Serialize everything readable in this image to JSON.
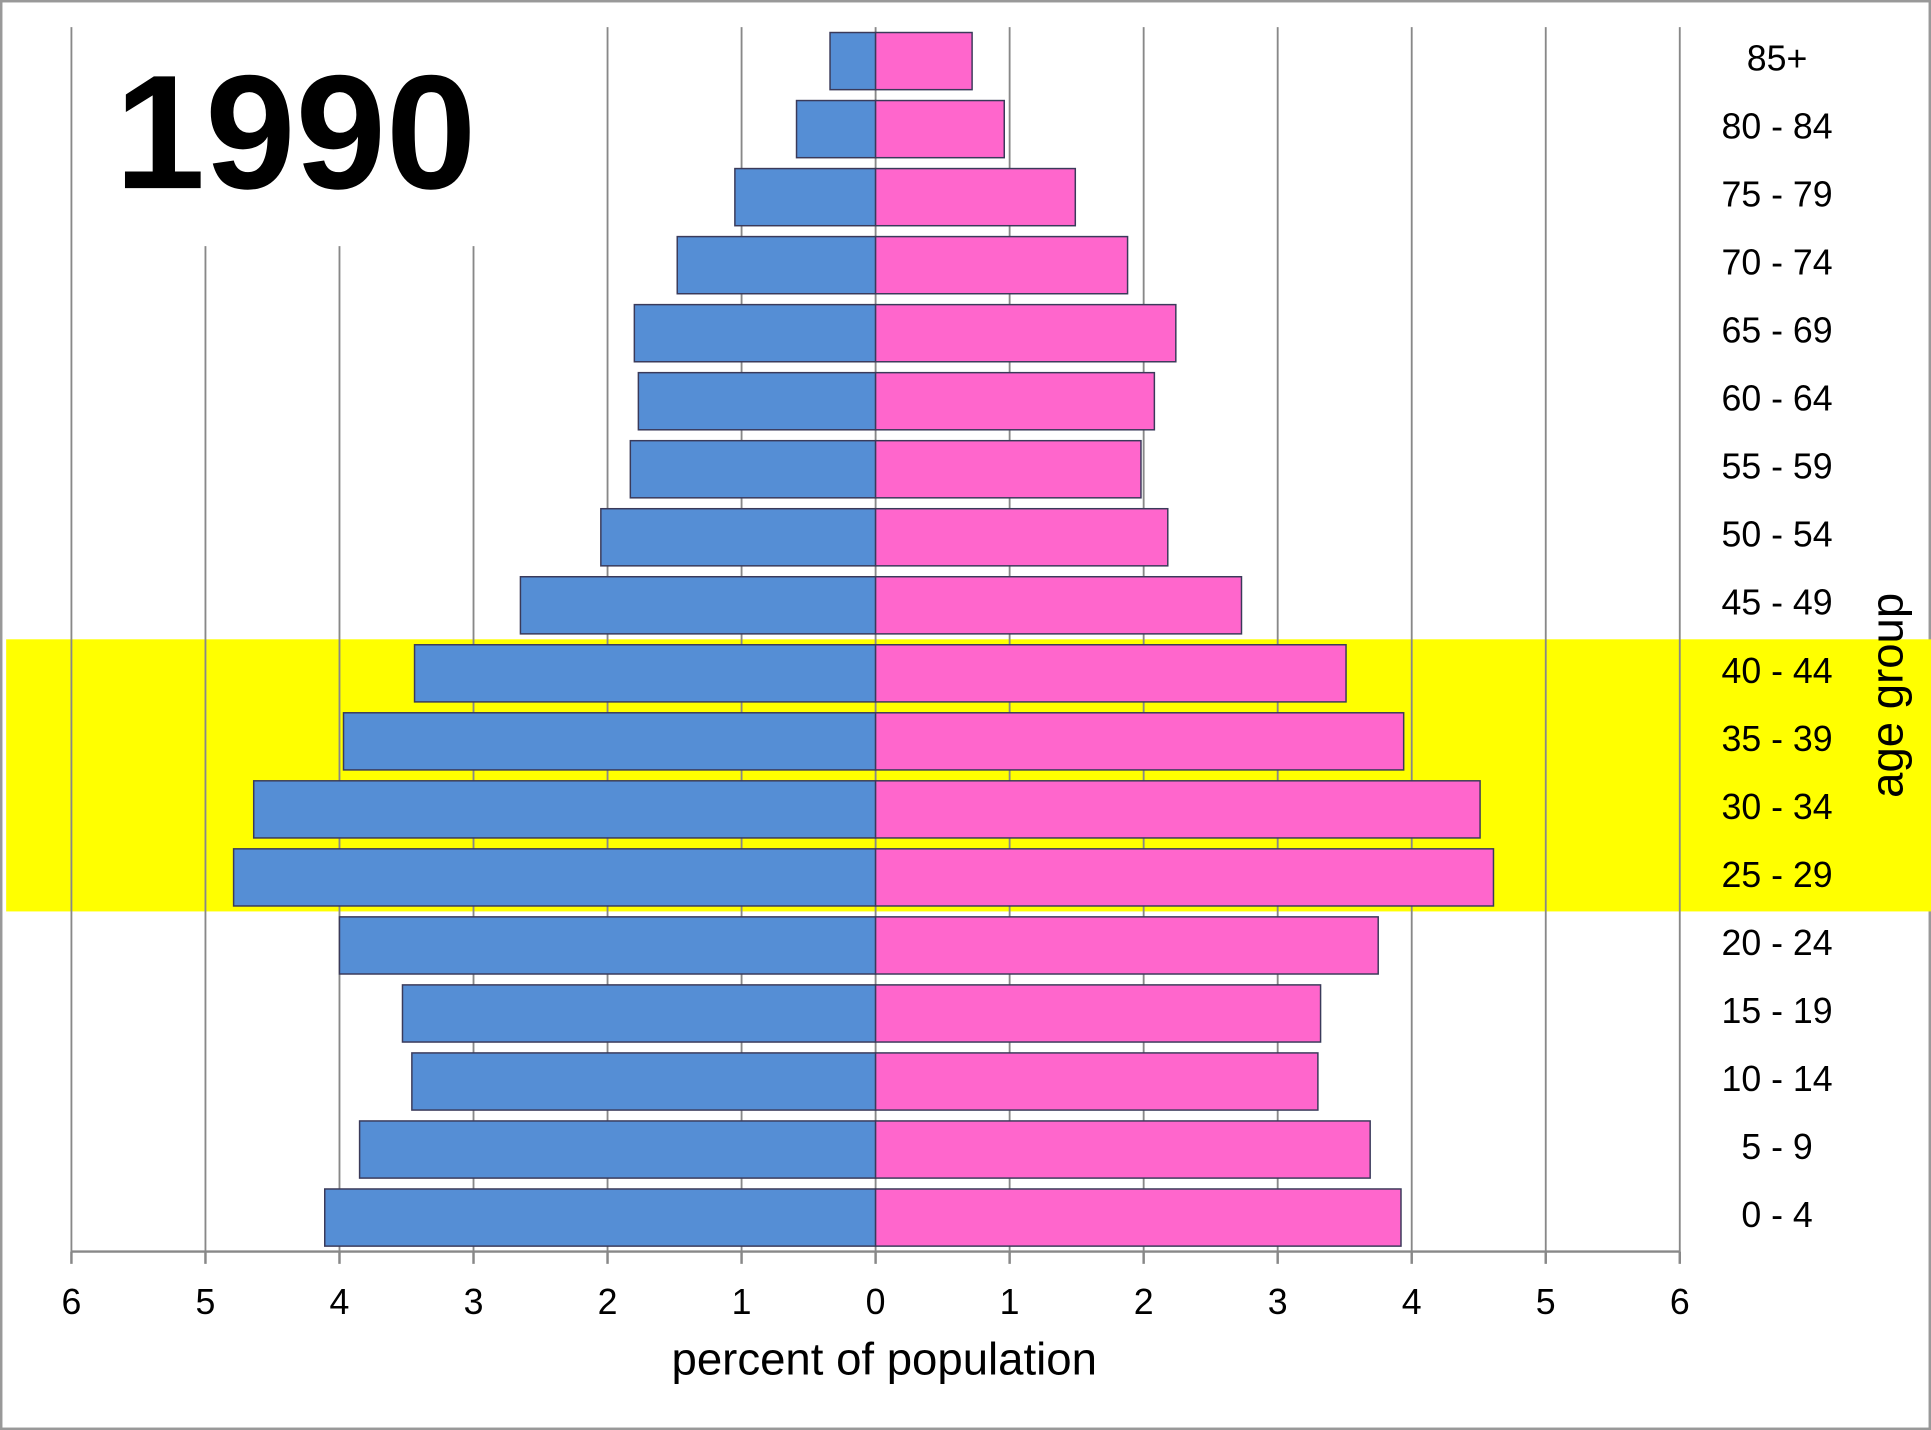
{
  "chart_data": {
    "type": "pyramid",
    "title": "1990",
    "x_label": "percent of population",
    "y_label": "age group",
    "categories": [
      "0 - 4",
      "5 - 9",
      "10 - 14",
      "15 - 19",
      "20 - 24",
      "25 - 29",
      "30 - 34",
      "35 - 39",
      "40 - 44",
      "45 - 49",
      "50 - 54",
      "55 - 59",
      "60 - 64",
      "65 - 69",
      "70 - 74",
      "75 - 79",
      "80 - 84",
      "85+"
    ],
    "series": [
      {
        "color": "#558ed5",
        "values": [
          -4.11,
          -3.85,
          -3.46,
          -3.53,
          -4.0,
          -4.79,
          -4.64,
          -3.97,
          -3.44,
          -2.65,
          -2.05,
          -1.83,
          -1.77,
          -1.8,
          -1.48,
          -1.05,
          -0.59,
          -0.34
        ]
      },
      {
        "color": "#ff66cc",
        "values": [
          3.92,
          3.69,
          3.3,
          3.32,
          3.75,
          4.61,
          4.51,
          3.94,
          3.51,
          2.73,
          2.18,
          1.98,
          2.08,
          2.24,
          1.88,
          1.49,
          0.96,
          0.72
        ]
      }
    ],
    "xlim": [
      -6,
      6
    ],
    "xticks": [
      {
        "value": -6,
        "label": "6"
      },
      {
        "value": -5,
        "label": "5"
      },
      {
        "value": -4,
        "label": "4"
      },
      {
        "value": -3,
        "label": "3"
      },
      {
        "value": -2,
        "label": "2"
      },
      {
        "value": -1,
        "label": "1"
      },
      0,
      1,
      2,
      3,
      4,
      5,
      6
    ],
    "grid": true,
    "highlight": {
      "from": "25 - 29",
      "to": "40 - 44",
      "color": "#ffff00"
    }
  }
}
